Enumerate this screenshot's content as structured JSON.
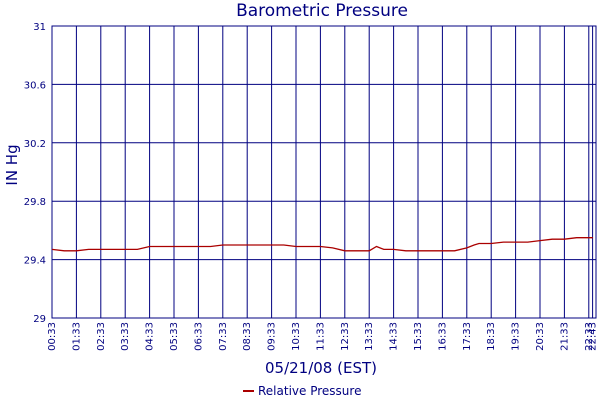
{
  "chart_data": {
    "type": "line",
    "title": "Barometric Pressure",
    "xlabel": "05/21/08 (EST)",
    "ylabel": "IN Hg",
    "ylim": [
      29,
      31
    ],
    "yticks": [
      "29",
      "29.4",
      "29.8",
      "30.2",
      "30.6",
      "31"
    ],
    "xticks": [
      "00:33",
      "01:33",
      "02:33",
      "03:33",
      "04:33",
      "05:33",
      "06:33",
      "07:33",
      "08:33",
      "09:33",
      "10:33",
      "11:33",
      "12:33",
      "13:33",
      "14:33",
      "15:33",
      "16:33",
      "17:33",
      "18:33",
      "19:33",
      "20:33",
      "21:33",
      "22:33",
      "22:43"
    ],
    "grid": true,
    "legend_position": "bottom-center",
    "series": [
      {
        "name": "Relative Pressure",
        "color": "#aa0000",
        "x": [
          0,
          0.5,
          1,
          1.5,
          2,
          2.5,
          3,
          3.5,
          4,
          4.5,
          5,
          5.5,
          6,
          6.5,
          7,
          7.5,
          8,
          8.5,
          9,
          9.5,
          10,
          10.5,
          11,
          11.5,
          12,
          12.5,
          13,
          13.3,
          13.6,
          14,
          14.5,
          15,
          15.5,
          16,
          16.5,
          17,
          17.3,
          17.5,
          18,
          18.5,
          19,
          19.5,
          20,
          20.5,
          21,
          21.5,
          22,
          22.17
        ],
        "values": [
          29.47,
          29.46,
          29.46,
          29.47,
          29.47,
          29.47,
          29.47,
          29.47,
          29.49,
          29.49,
          29.49,
          29.49,
          29.49,
          29.49,
          29.5,
          29.5,
          29.5,
          29.5,
          29.5,
          29.5,
          29.49,
          29.49,
          29.49,
          29.48,
          29.46,
          29.46,
          29.46,
          29.49,
          29.47,
          29.47,
          29.46,
          29.46,
          29.46,
          29.46,
          29.46,
          29.48,
          29.5,
          29.51,
          29.51,
          29.52,
          29.52,
          29.52,
          29.53,
          29.54,
          29.54,
          29.55,
          29.55,
          29.55
        ]
      }
    ]
  }
}
